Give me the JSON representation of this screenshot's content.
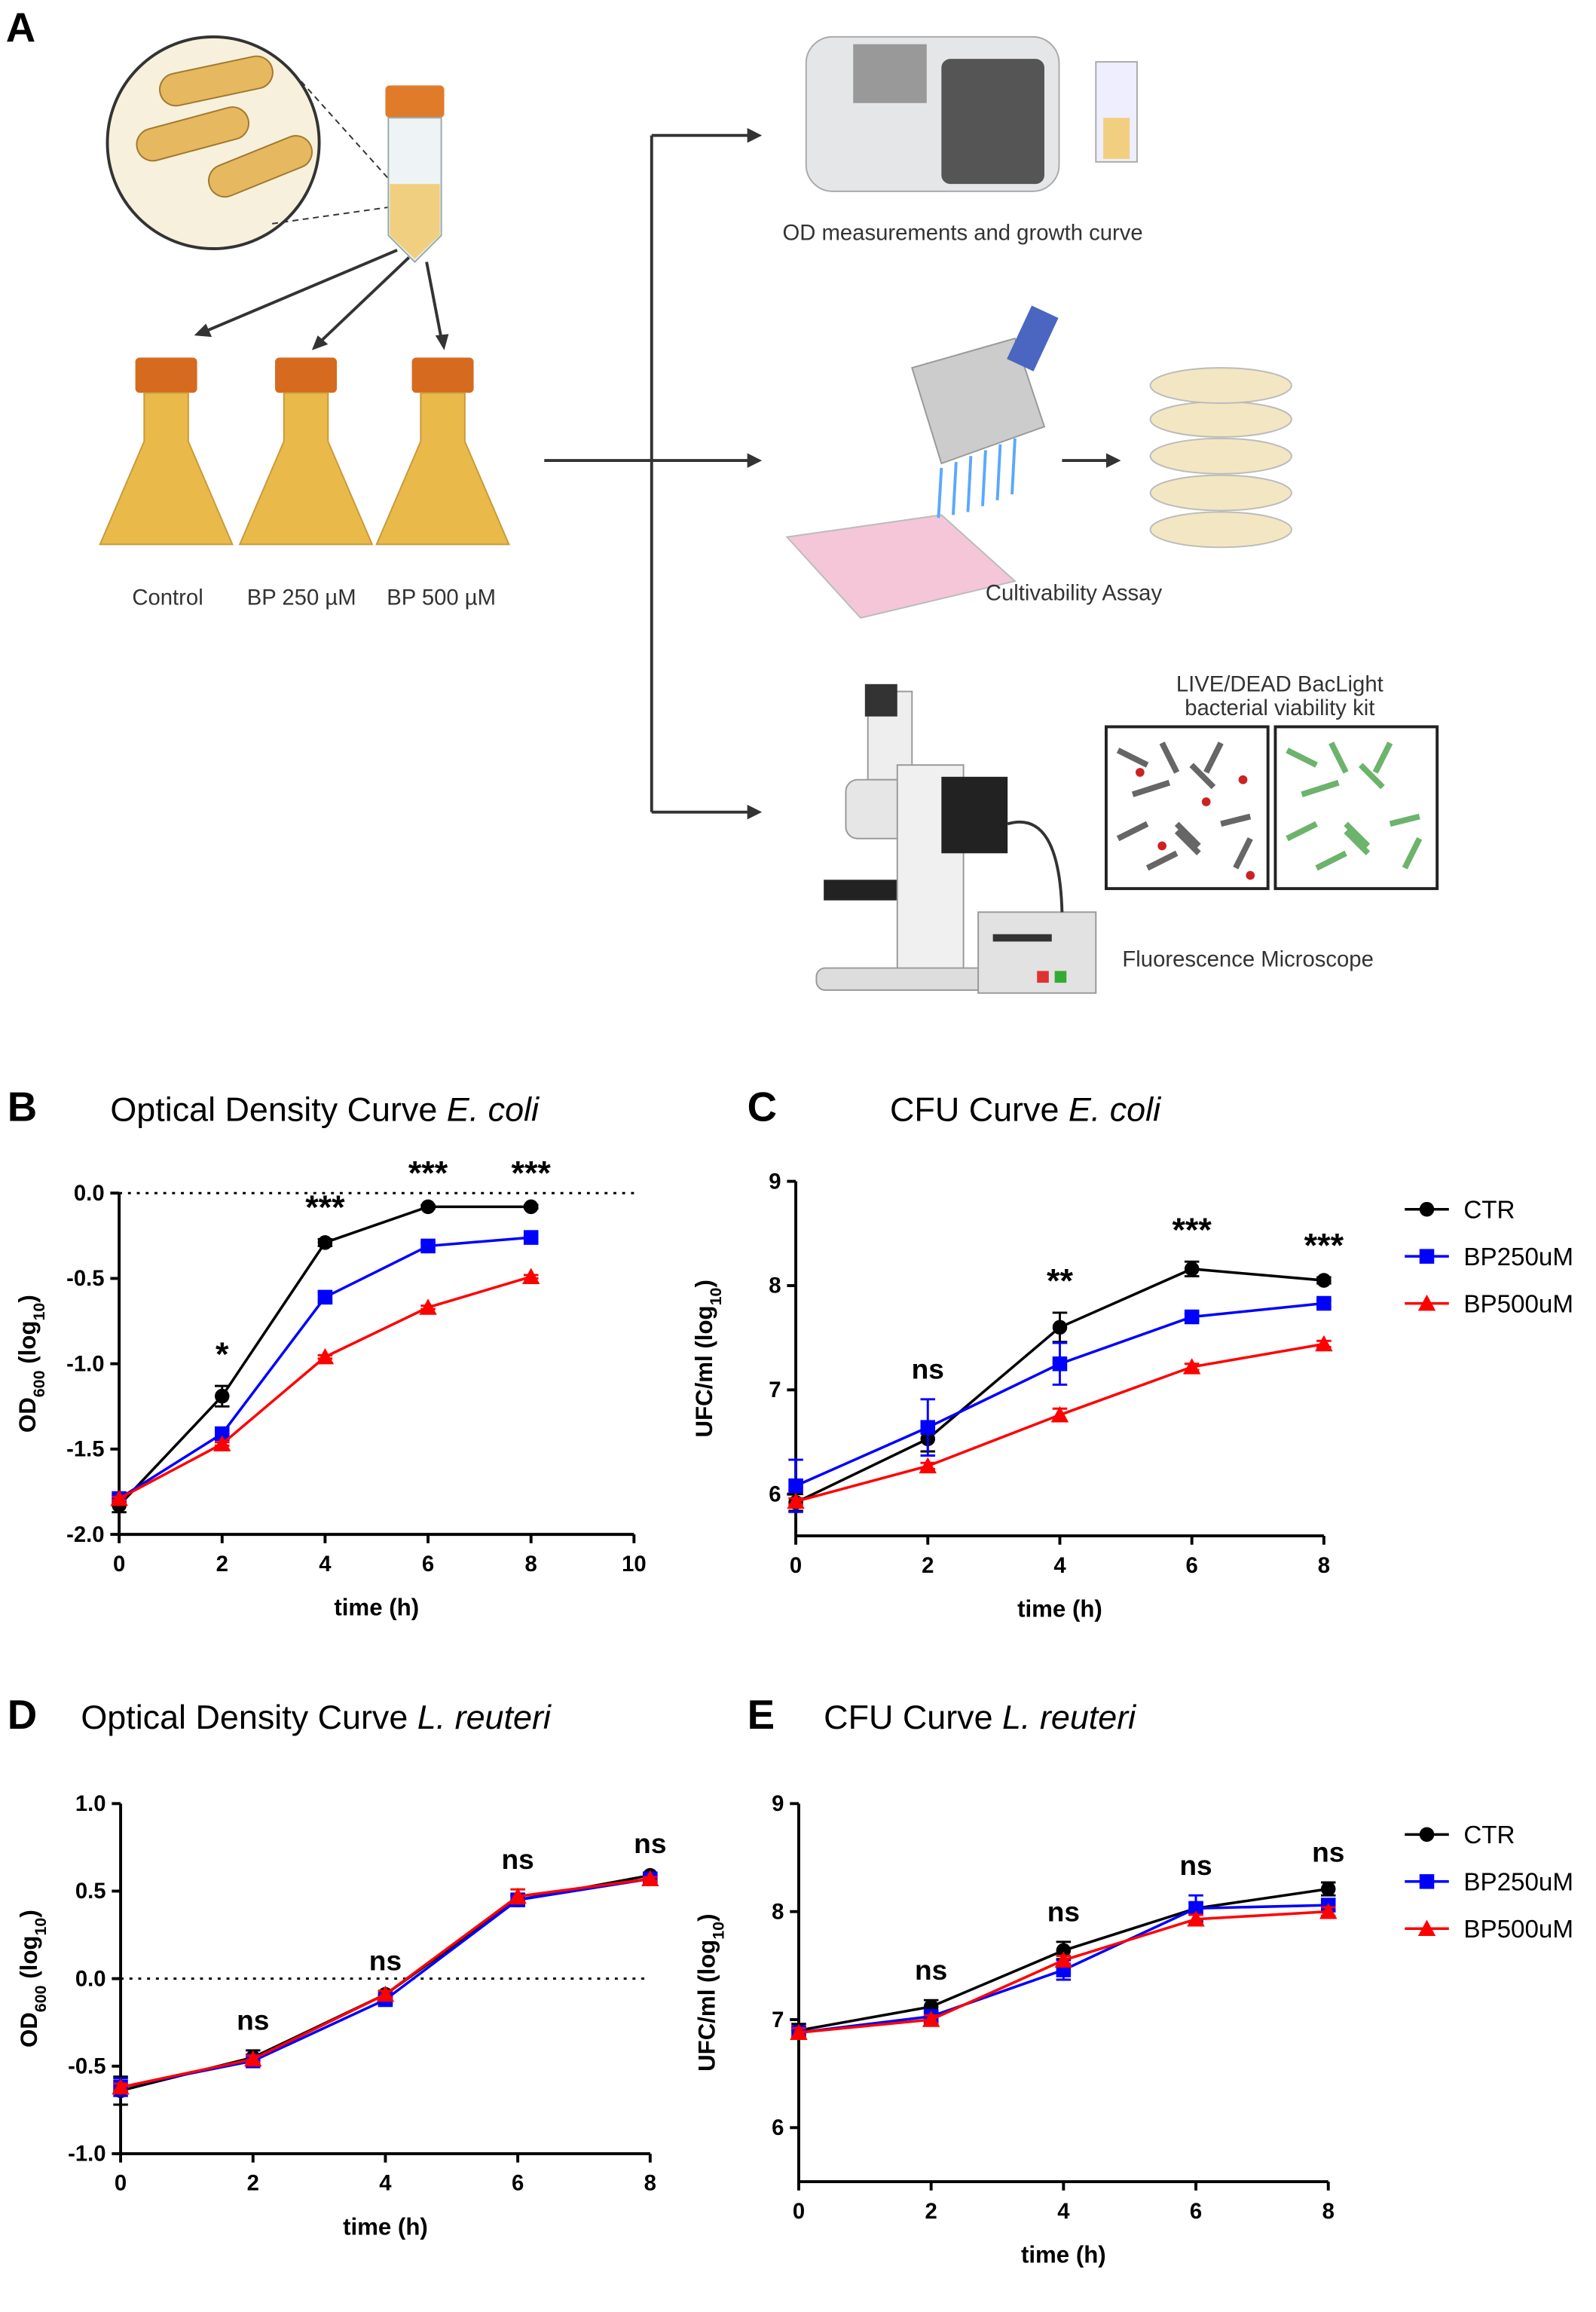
{
  "diagram": {
    "panel": "A",
    "flask_labels": [
      "Control",
      "BP 250 µM",
      "BP 500 µM"
    ],
    "od_label": "OD measurements and growth curve",
    "cult_label": "Cultivability Assay",
    "kit_label": [
      "LIVE/DEAD BacLight",
      "bacterial viability kit"
    ],
    "micro_label": "Fluorescence Microscope"
  },
  "chart_data": [
    {
      "type": "line",
      "panel": "B",
      "title_parts": [
        "Optical Density Curve ",
        "E. coli"
      ],
      "xlabel": "time (h)",
      "ylabel_parts": [
        "OD",
        "600",
        " (log",
        "10",
        ")"
      ],
      "x": [
        0,
        2,
        4,
        6,
        8
      ],
      "xlim": [
        0,
        10
      ],
      "xticks": [
        0,
        2,
        4,
        6,
        8,
        10
      ],
      "ylim": [
        -2,
        0
      ],
      "yticks": [
        {
          "value": -2,
          "label": "-2.0"
        },
        {
          "value": -1.5,
          "label": "-1.5"
        },
        {
          "value": -1,
          "label": "-1.0"
        },
        {
          "value": -0.5,
          "label": "-0.5"
        },
        {
          "value": 0,
          "label": "0.0"
        }
      ],
      "refline": 0,
      "legend": false,
      "series": [
        {
          "name": "CTR",
          "color": "#000000",
          "marker": "circle",
          "values": [
            -1.83,
            -1.19,
            -0.29,
            -0.08,
            -0.08
          ],
          "errors": [
            0.04,
            0.06,
            0.02,
            0.01,
            0.01
          ]
        },
        {
          "name": "BP250uM",
          "color": "#0000ff",
          "marker": "square",
          "values": [
            -1.79,
            -1.41,
            -0.61,
            -0.31,
            -0.26
          ],
          "errors": [
            0.02,
            0.02,
            0.03,
            0.02,
            0.01
          ]
        },
        {
          "name": "BP500uM",
          "color": "#ff0000",
          "marker": "triangle",
          "values": [
            -1.79,
            -1.47,
            -0.96,
            -0.67,
            -0.49
          ],
          "errors": [
            0.01,
            0.01,
            0.01,
            0.01,
            0.01
          ]
        }
      ],
      "annotations": [
        null,
        "*",
        "***",
        "***",
        "***"
      ]
    },
    {
      "type": "line",
      "panel": "C",
      "title_parts": [
        "CFU Curve ",
        "E. coli"
      ],
      "xlabel": "time (h)",
      "ylabel_parts": [
        "UFC/ml (log",
        "10",
        ")"
      ],
      "x": [
        0,
        2,
        4,
        6,
        8
      ],
      "xlim": [
        0,
        8
      ],
      "xticks": [
        0,
        2,
        4,
        6,
        8
      ],
      "ylim": [
        5.6,
        9
      ],
      "yticks": [
        6,
        7,
        8,
        9
      ],
      "legend": true,
      "series": [
        {
          "name": "CTR",
          "color": "#000000",
          "marker": "circle",
          "values": [
            5.92,
            6.53,
            7.6,
            8.16,
            8.05
          ],
          "errors": [
            0.08,
            0.12,
            0.14,
            0.07,
            0.03
          ]
        },
        {
          "name": "BP250uM",
          "color": "#0000ff",
          "marker": "square",
          "values": [
            6.08,
            6.64,
            7.25,
            7.7,
            7.83
          ],
          "errors": [
            0.25,
            0.27,
            0.2,
            0.03,
            0.03
          ]
        },
        {
          "name": "BP500uM",
          "color": "#ff0000",
          "marker": "triangle",
          "values": [
            5.93,
            6.27,
            6.76,
            7.22,
            7.44
          ],
          "errors": [
            0.03,
            0.03,
            0.06,
            0.03,
            0.03
          ]
        }
      ],
      "annotations": [
        null,
        "ns",
        "**",
        "***",
        "***"
      ]
    },
    {
      "type": "line",
      "panel": "D",
      "title_parts": [
        "Optical Density Curve ",
        "L. reuteri"
      ],
      "xlabel": "time (h)",
      "ylabel_parts": [
        "OD",
        "600",
        " (log",
        "10",
        ")"
      ],
      "x": [
        0,
        2,
        4,
        6,
        8
      ],
      "xlim": [
        0,
        8
      ],
      "xticks": [
        0,
        2,
        4,
        6,
        8
      ],
      "ylim": [
        -1,
        1
      ],
      "yticks": [
        {
          "value": -1,
          "label": "-1.0"
        },
        {
          "value": -0.5,
          "label": "-0.5"
        },
        {
          "value": 0,
          "label": "0.0"
        },
        {
          "value": 0.5,
          "label": "0.5"
        },
        {
          "value": 1,
          "label": "1.0"
        }
      ],
      "refline": 0,
      "legend": false,
      "series": [
        {
          "name": "CTR",
          "color": "#000000",
          "marker": "circle",
          "values": [
            -0.64,
            -0.45,
            -0.09,
            0.45,
            0.59
          ],
          "errors": [
            0.08,
            0.04,
            0.02,
            0.03,
            0.01
          ]
        },
        {
          "name": "BP250uM",
          "color": "#0000ff",
          "marker": "square",
          "values": [
            -0.62,
            -0.47,
            -0.12,
            0.45,
            0.57
          ],
          "errors": [
            0.05,
            0.03,
            0.02,
            0.02,
            0.01
          ]
        },
        {
          "name": "BP500uM",
          "color": "#ff0000",
          "marker": "triangle",
          "values": [
            -0.62,
            -0.46,
            -0.09,
            0.47,
            0.57
          ],
          "errors": [
            0.02,
            0.02,
            0.02,
            0.04,
            0.01
          ]
        }
      ],
      "annotations": [
        null,
        "ns",
        "ns",
        "ns",
        "ns"
      ]
    },
    {
      "type": "line",
      "panel": "E",
      "title_parts": [
        "CFU Curve ",
        "L. reuteri"
      ],
      "xlabel": "time (h)",
      "ylabel_parts": [
        "UFC/ml (log",
        "10",
        ")"
      ],
      "x": [
        0,
        2,
        4,
        6,
        8
      ],
      "xlim": [
        0,
        8
      ],
      "xticks": [
        0,
        2,
        4,
        6,
        8
      ],
      "ylim": [
        5.5,
        9
      ],
      "yticks": [
        6,
        7,
        8,
        9
      ],
      "legend": true,
      "series": [
        {
          "name": "CTR",
          "color": "#000000",
          "marker": "circle",
          "values": [
            6.9,
            7.12,
            7.64,
            8.03,
            8.21
          ],
          "errors": [
            0.06,
            0.06,
            0.08,
            0.05,
            0.06
          ]
        },
        {
          "name": "BP250uM",
          "color": "#0000ff",
          "marker": "square",
          "values": [
            6.88,
            7.03,
            7.46,
            8.03,
            8.06
          ],
          "errors": [
            0.05,
            0.05,
            0.09,
            0.12,
            0.05
          ]
        },
        {
          "name": "BP500uM",
          "color": "#ff0000",
          "marker": "triangle",
          "values": [
            6.88,
            7.0,
            7.55,
            7.93,
            8.0
          ],
          "errors": [
            0.04,
            0.04,
            0.04,
            0.04,
            0.04
          ]
        }
      ],
      "annotations": [
        null,
        "ns",
        "ns",
        "ns",
        "ns"
      ]
    }
  ]
}
